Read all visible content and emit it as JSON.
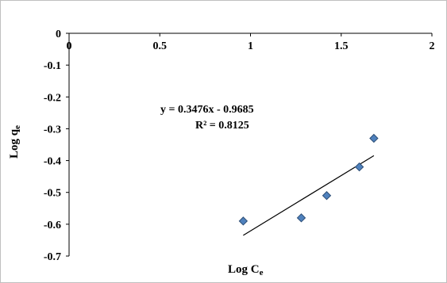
{
  "chart_data": {
    "type": "scatter",
    "title": "",
    "xlabel": "Log C",
    "xlabel_sub": "e",
    "ylabel": "Log q",
    "ylabel_sub": "e",
    "xlim": [
      0,
      2
    ],
    "ylim": [
      -0.7,
      0
    ],
    "x_ticks": [
      0,
      0.5,
      1,
      1.5,
      2
    ],
    "x_tick_labels": [
      "0",
      "0.5",
      "1",
      "1.5",
      "2"
    ],
    "y_ticks": [
      0,
      -0.1,
      -0.2,
      -0.3,
      -0.4,
      -0.5,
      -0.6,
      -0.7
    ],
    "y_tick_labels": [
      "0",
      "-0.1",
      "-0.2",
      "-0.3",
      "-0.4",
      "-0.5",
      "-0.6",
      "-0.7"
    ],
    "x_axis_position": "top",
    "grid": false,
    "marker": "diamond",
    "marker_color": "#4f81bd",
    "marker_edge_color": "#2c4d75",
    "series": [
      {
        "x": [
          0.96,
          1.28,
          1.42,
          1.6,
          1.68
        ],
        "y": [
          -0.59,
          -0.58,
          -0.51,
          -0.42,
          -0.33
        ]
      }
    ],
    "trendline": {
      "slope": 0.3476,
      "intercept": -0.9685,
      "x_range": [
        0.96,
        1.68
      ],
      "color": "#000000",
      "equation": "y = 0.3476x - 0.9685",
      "r_squared": "R² = 0.8125"
    }
  }
}
